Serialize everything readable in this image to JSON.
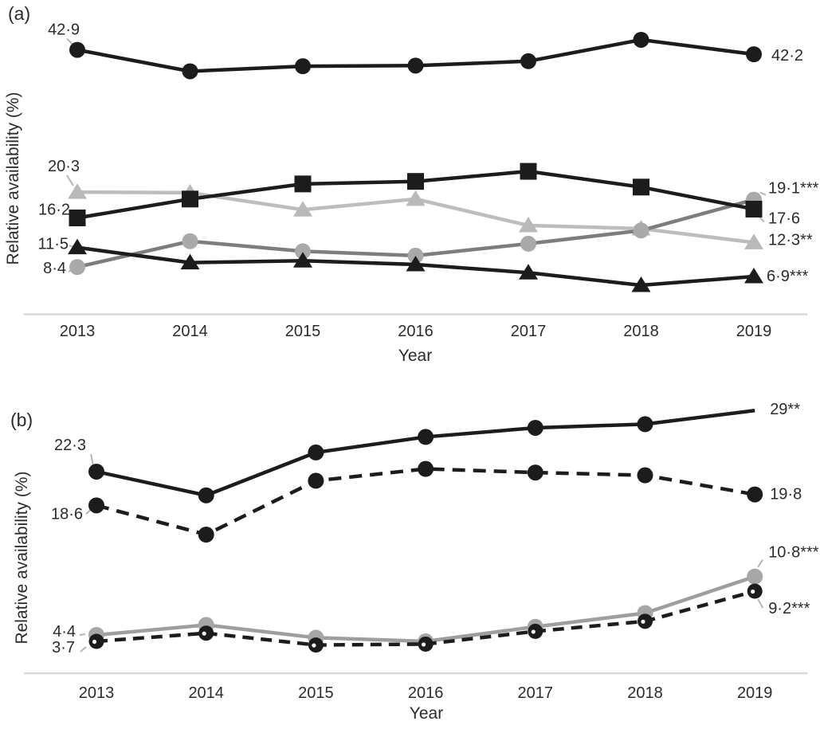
{
  "figure": {
    "background": "#ffffff",
    "text_color": "#2b2b2b",
    "axis_line_color": "#d9d9d9",
    "leader_line_color": "#b5b5b5"
  },
  "chart_data": [
    {
      "panel_label": "(a)",
      "type": "line",
      "title": "",
      "xlabel": "Year",
      "ylabel": "Relative availability (%)",
      "categories": [
        "2013",
        "2014",
        "2015",
        "2016",
        "2017",
        "2018",
        "2019"
      ],
      "ylim": [
        0,
        50
      ],
      "grid": false,
      "legend": "none",
      "series": [
        {
          "name": "light-grey-triangle",
          "marker": "triangle",
          "color": "#b9b9b9",
          "line_color": "#bdbdbd",
          "line_style": "solid",
          "values": [
            20.3,
            20.2,
            17.5,
            19.2,
            15.0,
            14.5,
            12.3
          ],
          "labels": [
            {
              "point": 0,
              "text": "20·3",
              "anchor": "end",
              "dx": 3,
              "dy": -26,
              "leader": [
                [
                  -13,
                  -21
                ],
                [
                  -5,
                  -8
                ]
              ]
            },
            {
              "point": 6,
              "text": "12·3**",
              "anchor": "start",
              "dx": 18,
              "dy": 3
            }
          ]
        },
        {
          "name": "dark-grey-circle",
          "marker": "circle",
          "color": "#a9a9a9",
          "line_color": "#7d7d7d",
          "line_style": "solid",
          "values": [
            8.4,
            12.5,
            10.9,
            10.2,
            12.1,
            14.2,
            19.1
          ],
          "labels": [
            {
              "point": 0,
              "text": "8·4",
              "anchor": "end",
              "dx": -14,
              "dy": 8,
              "leader": [
                [
                  -11,
                  6
                ],
                [
                  -6,
                  3
                ]
              ]
            },
            {
              "point": 6,
              "text": "19·1***",
              "anchor": "start",
              "dx": 18,
              "dy": -8,
              "leader": [
                [
                  8,
                  -9
                ],
                [
                  15,
                  -6
                ]
              ]
            }
          ]
        },
        {
          "name": "black-triangle",
          "marker": "triangle",
          "color": "#1c1c1c",
          "line_style": "solid",
          "values": [
            11.5,
            9.1,
            9.4,
            8.8,
            7.5,
            5.5,
            6.9
          ],
          "labels": [
            {
              "point": 0,
              "text": "11·5",
              "anchor": "end",
              "dx": -11,
              "dy": 2,
              "leader": [
                [
                  -10,
                  -2
                ],
                [
                  -5,
                  -1
                ]
              ]
            },
            {
              "point": 6,
              "text": "6·9***",
              "anchor": "start",
              "dx": 16,
              "dy": 6
            }
          ]
        },
        {
          "name": "black-square",
          "marker": "square",
          "color": "#1c1c1c",
          "line_style": "solid",
          "values": [
            16.2,
            19.2,
            21.6,
            22.0,
            23.6,
            21.1,
            17.6
          ],
          "labels": [
            {
              "point": 0,
              "text": "16·2",
              "anchor": "end",
              "dx": -9,
              "dy": -4,
              "leader": [
                [
                  -8,
                  -7
                ],
                [
                  -3,
                  -3
                ]
              ]
            },
            {
              "point": 6,
              "text": "17·6",
              "anchor": "start",
              "dx": 18,
              "dy": 18,
              "leader": [
                [
                  6,
                  9
                ],
                [
                  13,
                  16
                ]
              ]
            }
          ]
        },
        {
          "name": "black-circle",
          "marker": "circle",
          "color": "#1c1c1c",
          "line_style": "solid",
          "values": [
            42.9,
            39.5,
            40.3,
            40.4,
            41.1,
            44.5,
            42.2
          ],
          "labels": [
            {
              "point": 0,
              "text": "42·9",
              "anchor": "end",
              "dx": 3,
              "dy": -19,
              "leader": [
                [
                  -13,
                  -14
                ],
                [
                  -5,
                  -6
                ]
              ]
            },
            {
              "point": 6,
              "text": "42·2",
              "anchor": "start",
              "dx": 22,
              "dy": 8
            }
          ]
        }
      ]
    },
    {
      "panel_label": "(b)",
      "type": "line",
      "title": "",
      "xlabel": "Year",
      "ylabel": "Relative availability (%)",
      "categories": [
        "2013",
        "2014",
        "2015",
        "2016",
        "2017",
        "2018",
        "2019"
      ],
      "ylim": [
        0,
        32
      ],
      "grid": false,
      "legend": "none",
      "series": [
        {
          "name": "grey-circle",
          "marker": "circle",
          "color": "#a6a6a6",
          "line_color": "#9e9e9e",
          "line_style": "solid",
          "values": [
            4.4,
            5.5,
            4.1,
            3.7,
            5.3,
            6.8,
            10.8
          ],
          "labels": [
            {
              "point": 0,
              "text": "4·4",
              "anchor": "end",
              "dx": -26,
              "dy": 2,
              "leader": [
                [
                  -21,
                  0
                ],
                [
                  -14,
                  -1
                ]
              ]
            },
            {
              "point": 6,
              "text": "10·8***",
              "anchor": "start",
              "dx": 17,
              "dy": -24,
              "leader": [
                [
                  4,
                  -12
                ],
                [
                  10,
                  -21
                ]
              ]
            }
          ]
        },
        {
          "name": "black-open-circle-dashed",
          "marker": "open-circle",
          "color": "#1c1c1c",
          "line_style": "dashed",
          "dash": "14 9",
          "values": [
            3.7,
            4.6,
            3.3,
            3.4,
            4.8,
            5.9,
            9.2
          ],
          "labels": [
            {
              "point": 0,
              "text": "3·7",
              "anchor": "end",
              "dx": -27,
              "dy": 14,
              "leader": [
                [
                  -20,
                  13
                ],
                [
                  -13,
                  7
                ]
              ]
            },
            {
              "point": 6,
              "text": "9·2***",
              "anchor": "start",
              "dx": 17,
              "dy": 28,
              "leader": [
                [
                  4,
                  10
                ],
                [
                  10,
                  21
                ]
              ]
            }
          ]
        },
        {
          "name": "black-circle-solid",
          "marker": "circle",
          "color": "#1c1c1c",
          "line_style": "solid",
          "end_marker": false,
          "values": [
            22.3,
            19.7,
            24.4,
            26.1,
            27.1,
            27.5,
            29.0
          ],
          "labels": [
            {
              "point": 0,
              "text": "22·3",
              "anchor": "end",
              "dx": -13,
              "dy": -27,
              "leader": [
                [
                  -7,
                  -22
                ],
                [
                  -4,
                  -8
                ]
              ]
            },
            {
              "point": 6,
              "text": "29**",
              "anchor": "start",
              "dx": 19,
              "dy": 5
            }
          ]
        },
        {
          "name": "black-circle-dashed",
          "marker": "circle",
          "color": "#1c1c1c",
          "line_style": "dashed",
          "dash": "16 10",
          "values": [
            18.6,
            15.4,
            21.3,
            22.6,
            22.2,
            21.9,
            19.8
          ],
          "labels": [
            {
              "point": 0,
              "text": "18·6",
              "anchor": "end",
              "dx": -17,
              "dy": 17,
              "leader": [
                [
                  -13,
                  11
                ],
                [
                  -7,
                  5
                ]
              ]
            },
            {
              "point": 6,
              "text": "19·8",
              "anchor": "start",
              "dx": 19,
              "dy": 6
            }
          ]
        }
      ]
    }
  ]
}
